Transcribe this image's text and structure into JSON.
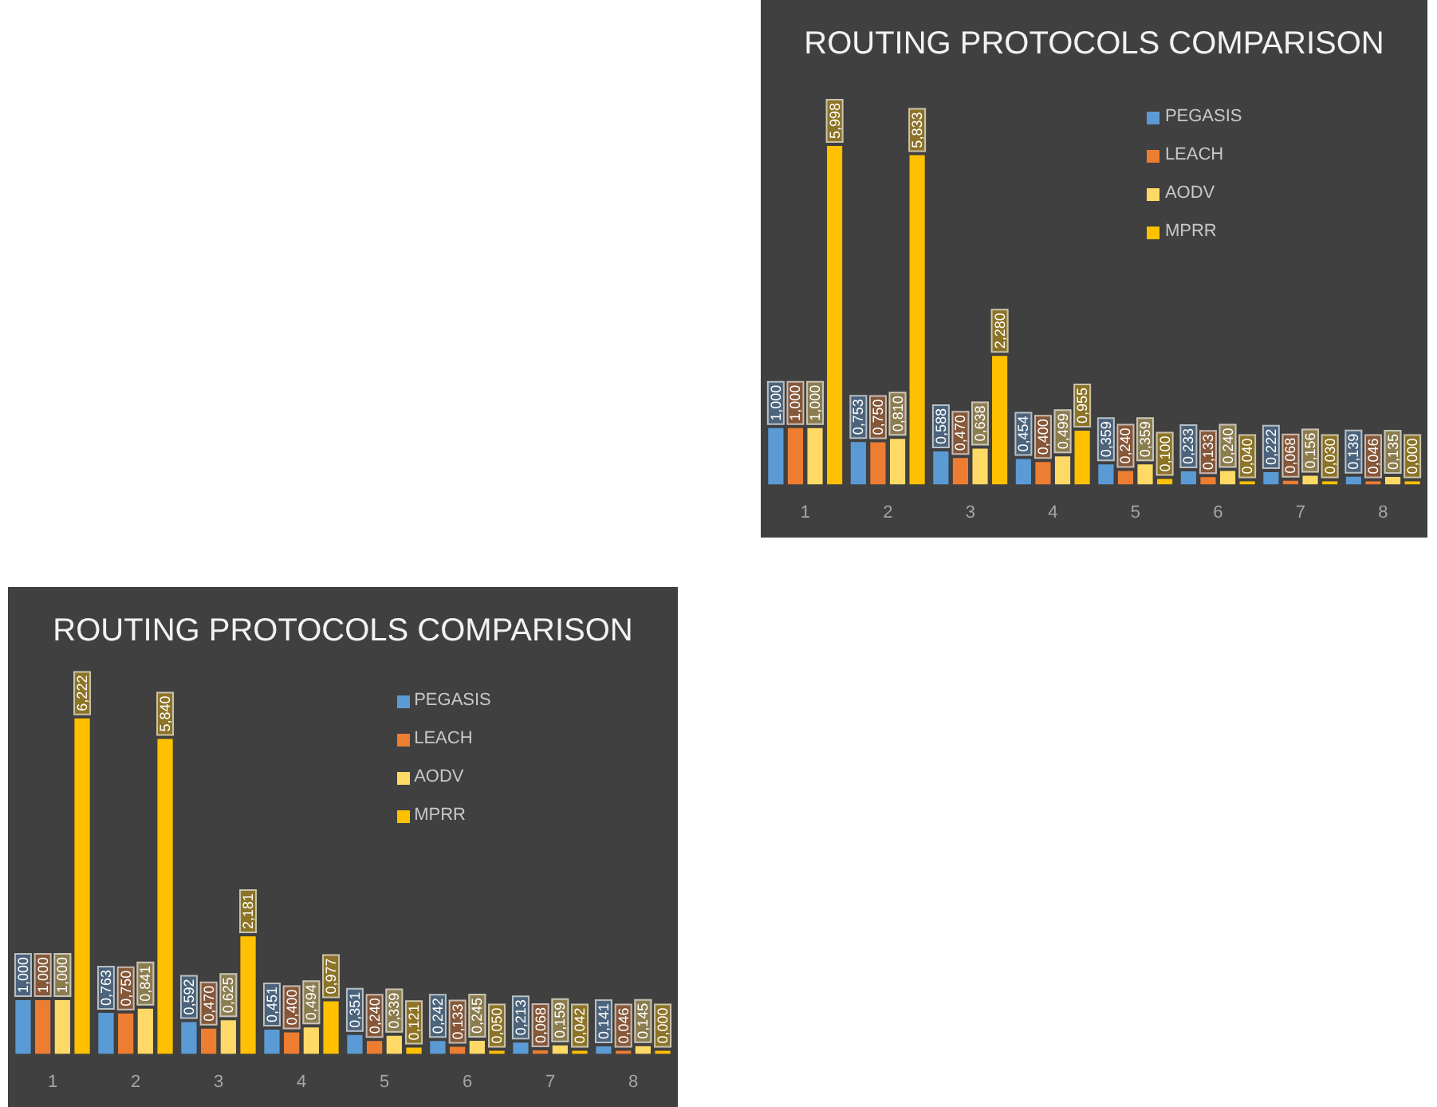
{
  "chart_data": [
    {
      "type": "bar",
      "title": "ROUTING PROTOCOLS COMPARISON",
      "categories": [
        "1",
        "2",
        "3",
        "4",
        "5",
        "6",
        "7",
        "8"
      ],
      "legend": "top right",
      "tick_labels": "x",
      "series": [
        {
          "name": "PEGASIS",
          "color": "#5b9bd5",
          "values": [
            1.0,
            0.753,
            0.588,
            0.454,
            0.359,
            0.233,
            0.222,
            0.139
          ],
          "value_labels": [
            "1,000",
            "0,753",
            "0,588",
            "0,454",
            "0,359",
            "0,233",
            "0,222",
            "0,139"
          ]
        },
        {
          "name": "LEACH",
          "color": "#ed7d31",
          "values": [
            1.0,
            0.75,
            0.47,
            0.4,
            0.24,
            0.133,
            0.068,
            0.046
          ],
          "value_labels": [
            "1,000",
            "0,750",
            "0,470",
            "0,400",
            "0,240",
            "0,133",
            "0,068",
            "0,046"
          ]
        },
        {
          "name": "AODV",
          "color": "#ffd966",
          "values": [
            1.0,
            0.81,
            0.638,
            0.499,
            0.359,
            0.24,
            0.156,
            0.135
          ],
          "value_labels": [
            "1,000",
            "0,810",
            "0,638",
            "0,499",
            "0,359",
            "0,240",
            "0,156",
            "0,135"
          ]
        },
        {
          "name": "MPRR",
          "color": "#ffc000",
          "values": [
            5.998,
            5.833,
            2.28,
            0.955,
            0.1,
            0.04,
            0.03,
            0.0
          ],
          "value_labels": [
            "5,998",
            "5,833",
            "2,280",
            "0,955",
            "0,100",
            "0,040",
            "0,030",
            "0,000"
          ]
        }
      ]
    },
    {
      "type": "bar",
      "title": "ROUTING PROTOCOLS COMPARISON",
      "categories": [
        "1",
        "2",
        "3",
        "4",
        "5",
        "6",
        "7",
        "8"
      ],
      "legend": "top right",
      "tick_labels": "x",
      "series": [
        {
          "name": "PEGASIS",
          "color": "#5b9bd5",
          "values": [
            1.0,
            0.763,
            0.592,
            0.451,
            0.351,
            0.242,
            0.213,
            0.141
          ],
          "value_labels": [
            "1,000",
            "0,763",
            "0,592",
            "0,451",
            "0,351",
            "0,242",
            "0,213",
            "0,141"
          ]
        },
        {
          "name": "LEACH",
          "color": "#ed7d31",
          "values": [
            1.0,
            0.75,
            0.47,
            0.4,
            0.24,
            0.133,
            0.068,
            0.046
          ],
          "value_labels": [
            "1,000",
            "0,750",
            "0,470",
            "0,400",
            "0,240",
            "0,133",
            "0,068",
            "0,046"
          ]
        },
        {
          "name": "AODV",
          "color": "#ffd966",
          "values": [
            1.0,
            0.841,
            0.625,
            0.494,
            0.339,
            0.245,
            0.159,
            0.145
          ],
          "value_labels": [
            "1,000",
            "0,841",
            "0,625",
            "0,494",
            "0,339",
            "0,245",
            "0,159",
            "0,145"
          ]
        },
        {
          "name": "MPRR",
          "color": "#ffc000",
          "values": [
            6.222,
            5.84,
            2.181,
            0.977,
            0.121,
            0.05,
            0.042,
            0.0
          ],
          "value_labels": [
            "6,222",
            "5,840",
            "2,181",
            "0,977",
            "0,121",
            "0,050",
            "0,042",
            "0,000"
          ]
        }
      ]
    }
  ]
}
